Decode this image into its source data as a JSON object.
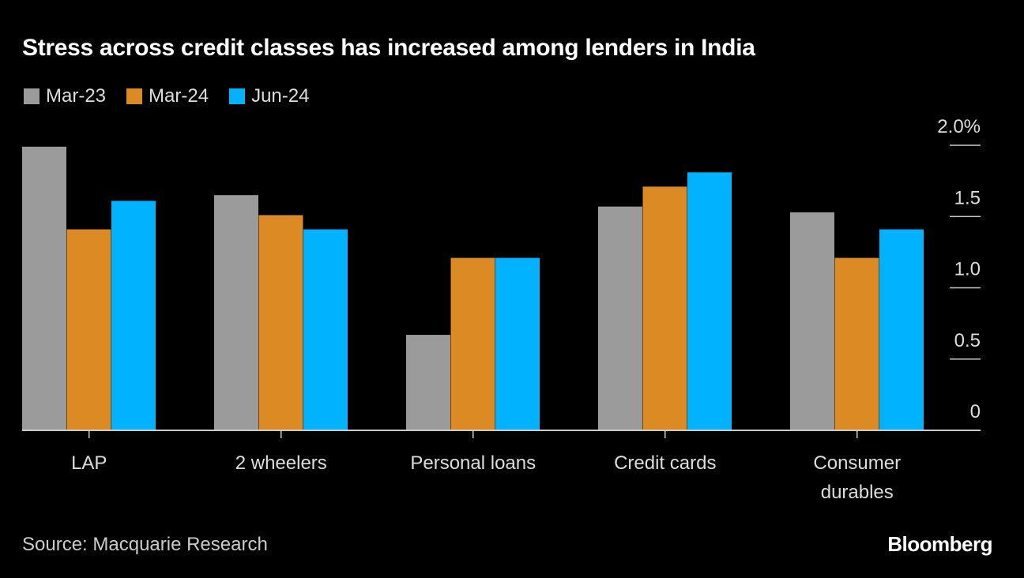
{
  "chart_data": {
    "type": "bar",
    "title": "Stress across credit classes has increased among lenders in India",
    "categories": [
      [
        "LAP"
      ],
      [
        "2 wheelers"
      ],
      [
        "Personal loans"
      ],
      [
        "Credit cards"
      ],
      [
        "Consumer",
        "durables"
      ]
    ],
    "series": [
      {
        "name": "Mar-23",
        "color": "#9b9b9b",
        "values": [
          1.99,
          1.65,
          0.67,
          1.57,
          1.53
        ]
      },
      {
        "name": "Mar-24",
        "color": "#dc8a24",
        "values": [
          1.41,
          1.51,
          1.21,
          1.71,
          1.21
        ]
      },
      {
        "name": "Jun-24",
        "color": "#00b2ff",
        "values": [
          1.61,
          1.41,
          1.21,
          1.81,
          1.41
        ]
      }
    ],
    "yticks": [
      {
        "v": 0,
        "label": "0"
      },
      {
        "v": 0.5,
        "label": "0.5"
      },
      {
        "v": 1,
        "label": "1.0"
      },
      {
        "v": 1.5,
        "label": "1.5"
      },
      {
        "v": 2,
        "label": "2.0%"
      }
    ],
    "ylim": [
      0,
      2.0
    ],
    "xlabel": "",
    "ylabel": "",
    "legend_position": "top-left",
    "source": "Source: Macquarie Research",
    "brand": "Bloomberg"
  }
}
